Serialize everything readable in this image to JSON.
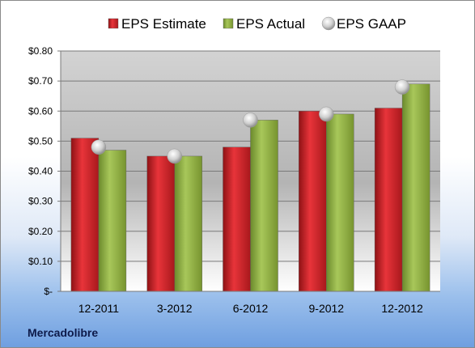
{
  "company": "Mercadolibre",
  "chart_data": {
    "type": "bar",
    "categories": [
      "12-2011",
      "3-2012",
      "6-2012",
      "9-2012",
      "12-2012"
    ],
    "series": [
      {
        "name": "EPS Estimate",
        "type": "bar",
        "color": "#c81e23",
        "values": [
          0.51,
          0.45,
          0.48,
          0.6,
          0.61
        ]
      },
      {
        "name": "EPS Actual",
        "type": "bar",
        "color": "#8fae44",
        "values": [
          0.47,
          0.45,
          0.57,
          0.59,
          0.69
        ]
      },
      {
        "name": "EPS GAAP",
        "type": "scatter",
        "color": "#c9c9c9",
        "values": [
          0.48,
          0.45,
          0.57,
          0.59,
          0.68
        ]
      }
    ],
    "ylim": [
      0,
      0.8
    ],
    "yticks": [
      0,
      0.1,
      0.2,
      0.3,
      0.4,
      0.5,
      0.6,
      0.7,
      0.8
    ],
    "ytick_labels": [
      "$-",
      "$0.10",
      "$0.20",
      "$0.30",
      "$0.40",
      "$0.50",
      "$0.60",
      "$0.70",
      "$0.80"
    ],
    "grid": true,
    "legend": "top"
  }
}
